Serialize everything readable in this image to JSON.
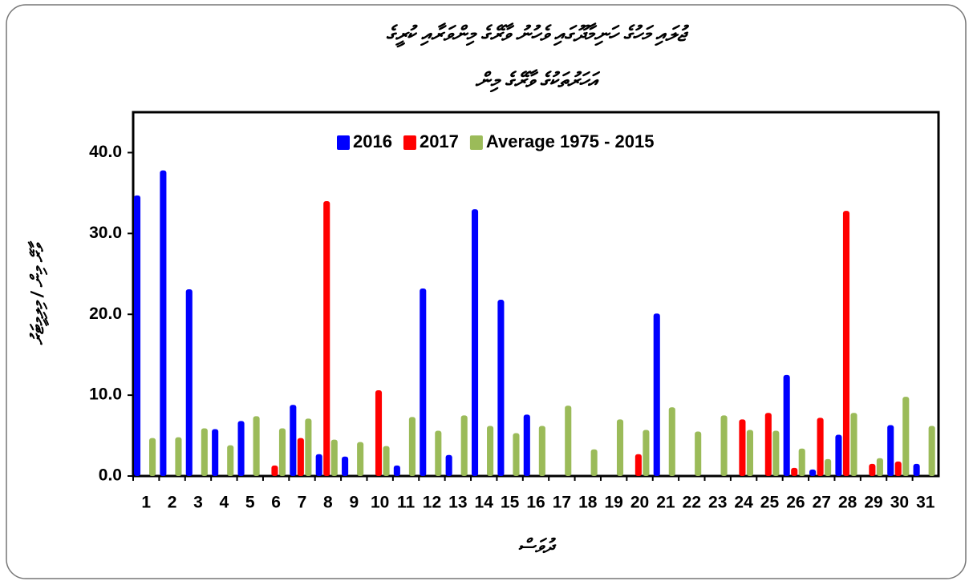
{
  "chart_data": {
    "type": "bar",
    "title": [
      "ޖުލައި މަހުގެ ހަނިމާދޫގައި ވެހުނު ވާރޭގެ މިންވަރާއި ކުރީގެ",
      "އަހަރުތަކުގެ ވާރޭގެ މިން"
    ],
    "xlabel": "ދުވަސް",
    "ylabel": "ވާރޭ މިން / މިލިމީޓަރު",
    "categories": [
      "1",
      "2",
      "3",
      "4",
      "5",
      "6",
      "7",
      "8",
      "9",
      "10",
      "11",
      "12",
      "13",
      "14",
      "15",
      "16",
      "17",
      "18",
      "19",
      "20",
      "21",
      "22",
      "23",
      "24",
      "25",
      "26",
      "27",
      "28",
      "29",
      "30",
      "31"
    ],
    "series": [
      {
        "name": "2016",
        "color": "#0000ff",
        "values": [
          34.7,
          37.8,
          23.1,
          5.8,
          6.8,
          0,
          8.8,
          2.7,
          2.4,
          0,
          1.3,
          23.2,
          2.6,
          33.0,
          21.8,
          7.6,
          0,
          0,
          0,
          0,
          20.1,
          0,
          0,
          0,
          0,
          12.5,
          0.8,
          5.1,
          0,
          6.3,
          1.5
        ]
      },
      {
        "name": "2017",
        "color": "#ff0000",
        "values": [
          0,
          0,
          0,
          0,
          0,
          1.3,
          4.7,
          34.0,
          0,
          10.6,
          0,
          0,
          0,
          0,
          0,
          0,
          0,
          0,
          0,
          2.7,
          0,
          0,
          0,
          7.0,
          7.8,
          1.0,
          7.2,
          32.8,
          1.5,
          1.8,
          0
        ]
      },
      {
        "name": "Average 1975 - 2015",
        "color": "#9bbb59",
        "values": [
          4.7,
          4.8,
          5.9,
          3.8,
          7.4,
          5.9,
          7.1,
          4.5,
          4.2,
          3.7,
          7.3,
          5.6,
          7.5,
          6.2,
          5.3,
          6.2,
          8.7,
          3.3,
          7.0,
          5.7,
          8.5,
          5.5,
          7.5,
          5.7,
          5.6,
          3.4,
          2.1,
          7.8,
          2.2,
          9.8,
          6.2
        ]
      }
    ],
    "ylim": [
      0,
      45
    ],
    "yticks": [
      {
        "value": 0,
        "label": "0.0"
      },
      {
        "value": 10,
        "label": "10.0"
      },
      {
        "value": 20,
        "label": "20.0"
      },
      {
        "value": 30,
        "label": "30.0"
      },
      {
        "value": 40,
        "label": "40.0"
      }
    ],
    "legend": "top"
  }
}
